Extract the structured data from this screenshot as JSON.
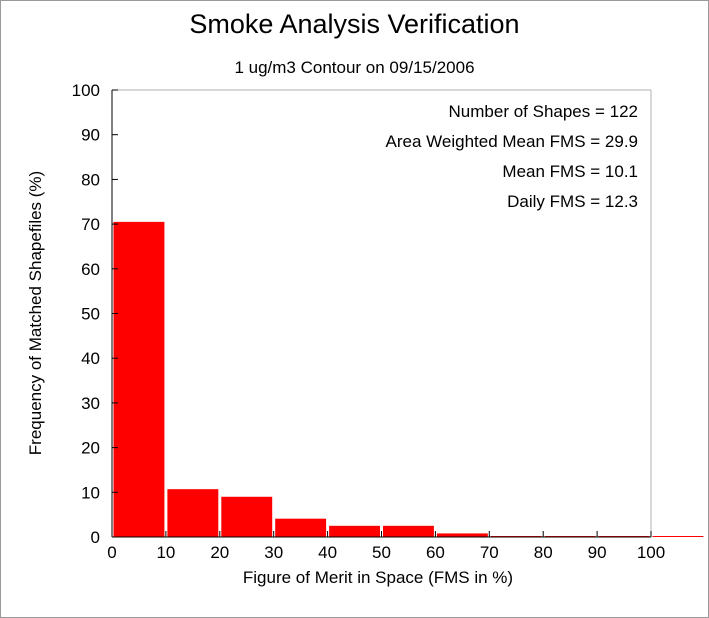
{
  "chart_data": {
    "type": "bar",
    "title": "Smoke Analysis Verification",
    "subtitle": "1 ug/m3 Contour on 09/15/2006",
    "xlabel": "Figure of Merit in Space (FMS in %)",
    "ylabel": "Frequency of Matched Shapefiles (%)",
    "xlim": [
      0,
      110
    ],
    "ylim": [
      0,
      100
    ],
    "xticks": [
      0,
      10,
      20,
      30,
      40,
      50,
      60,
      70,
      80,
      90,
      100
    ],
    "yticks": [
      0,
      10,
      20,
      30,
      40,
      50,
      60,
      70,
      80,
      90,
      100
    ],
    "bins": [
      [
        0,
        10
      ],
      [
        10,
        20
      ],
      [
        20,
        30
      ],
      [
        30,
        40
      ],
      [
        40,
        50
      ],
      [
        50,
        60
      ],
      [
        60,
        70
      ],
      [
        70,
        80
      ],
      [
        80,
        90
      ],
      [
        90,
        100
      ],
      [
        100,
        110
      ]
    ],
    "values": [
      70.5,
      10.7,
      9.0,
      4.1,
      2.5,
      2.5,
      0.8,
      0.05,
      0.05,
      0.05,
      0.05
    ],
    "bar_color": "#ff0000",
    "grid": false,
    "annotations": [
      "Number of Shapes = 122",
      "Area Weighted Mean FMS = 29.9",
      "Mean FMS = 10.1",
      "Daily FMS = 12.3"
    ],
    "annotation_placement": "top-right"
  }
}
